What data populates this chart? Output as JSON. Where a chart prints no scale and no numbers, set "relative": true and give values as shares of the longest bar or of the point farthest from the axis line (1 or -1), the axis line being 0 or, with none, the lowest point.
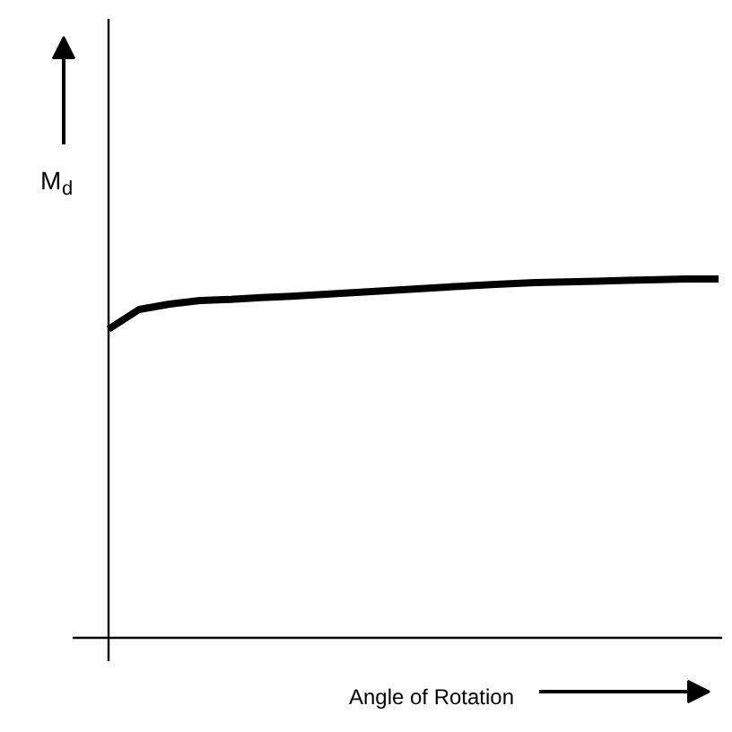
{
  "chart_data": {
    "type": "line",
    "relative": true,
    "xlabel": "Angle of Rotation",
    "ylabel": "M$_{d}$",
    "categories": [
      null,
      null,
      null,
      null,
      null,
      null,
      null,
      null,
      null,
      null,
      null,
      null,
      null,
      null,
      null,
      null,
      null,
      null,
      null,
      null,
      null
    ],
    "series": [
      {
        "color": "#000000",
        "values": [
          0.86,
          0.915,
          0.93,
          0.94,
          0.943,
          0.948,
          0.952,
          0.957,
          0.962,
          0.967,
          0.972,
          0.977,
          0.982,
          0.986,
          0.99,
          0.992,
          0.994,
          0.996,
          0.998,
          1,
          1
        ]
      }
    ],
    "grid": false
  }
}
